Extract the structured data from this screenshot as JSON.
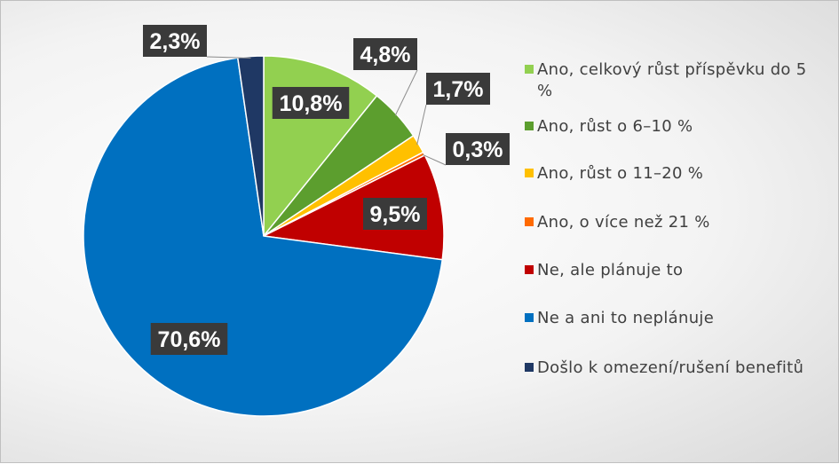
{
  "chart_data": {
    "type": "pie",
    "title": "",
    "start_angle_deg": 0,
    "direction": "clockwise",
    "legend_position": "right",
    "slices": [
      {
        "label": "Ano, celkový růst příspěvku do 5 %",
        "value": 10.8,
        "display": "10,8%",
        "color": "#92d050"
      },
      {
        "label": "Ano, růst o 6–10 %",
        "value": 4.8,
        "display": "4,8%",
        "color": "#5c9e2e"
      },
      {
        "label": "Ano, růst o 11–20 %",
        "value": 1.7,
        "display": "1,7%",
        "color": "#ffc000"
      },
      {
        "label": "Ano, o více než 21 %",
        "value": 0.3,
        "display": "0,3%",
        "color": "#ff6a00"
      },
      {
        "label": "Ne, ale plánuje to",
        "value": 9.5,
        "display": "9,5%",
        "color": "#c00000"
      },
      {
        "label": "Ne a ani to neplánuje",
        "value": 70.6,
        "display": "70,6%",
        "color": "#0070c0"
      },
      {
        "label": "Došlo k omezení/rušení benefitů",
        "value": 2.3,
        "display": "2,3%",
        "color": "#1f3864"
      }
    ]
  },
  "legend": {
    "items": [
      {
        "label": "Ano, celkový růst příspěvku do 5 %",
        "color": "#92d050"
      },
      {
        "label": "Ano, růst o 6–10 %",
        "color": "#5c9e2e"
      },
      {
        "label": "Ano, růst o 11–20 %",
        "color": "#ffc000"
      },
      {
        "label": "Ano, o více než 21 %",
        "color": "#ff6a00"
      },
      {
        "label": "Ne, ale plánuje to",
        "color": "#c00000"
      },
      {
        "label": "Ne a ani to neplánuje",
        "color": "#0070c0"
      },
      {
        "label": "Došlo k omezení/rušení benefitů",
        "color": "#1f3864"
      }
    ]
  }
}
